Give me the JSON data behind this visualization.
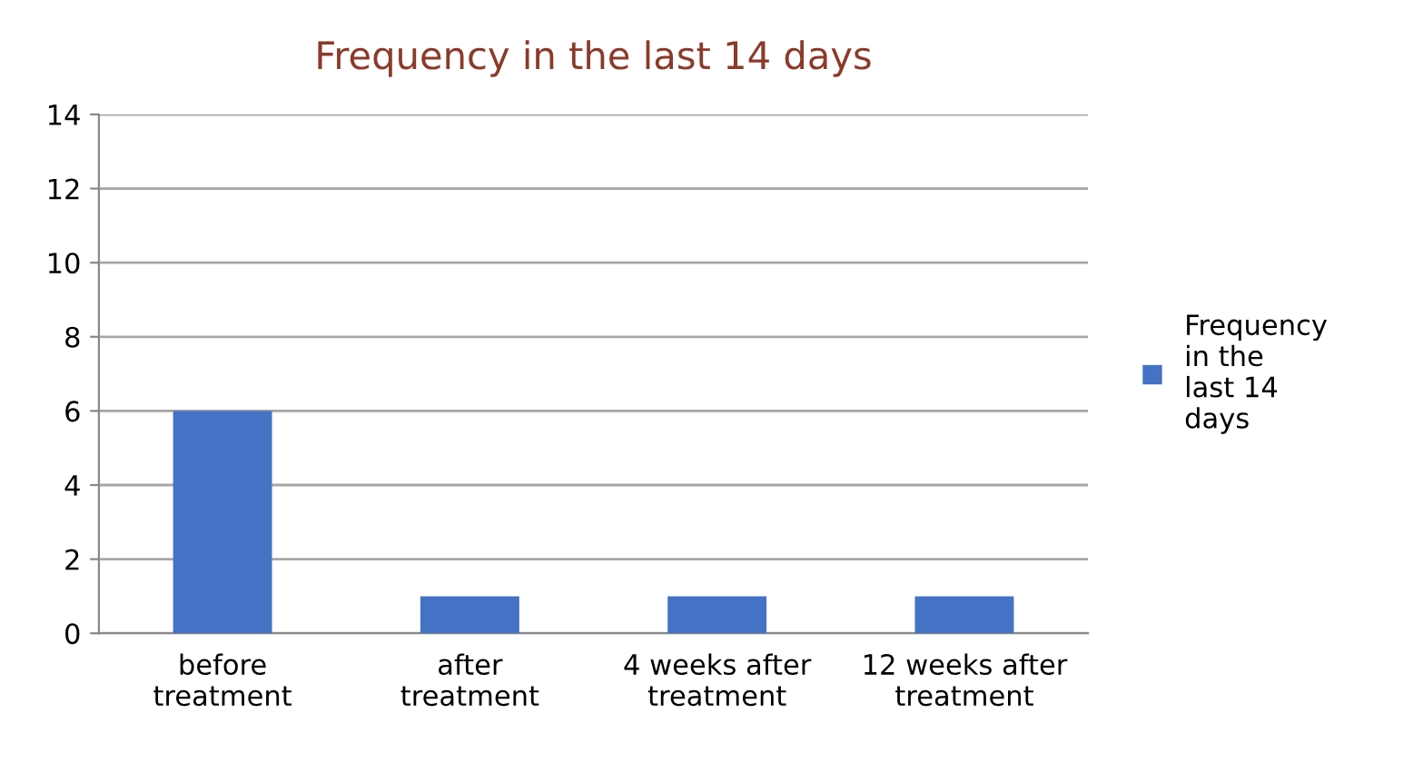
{
  "chart_data": {
    "type": "bar",
    "title": "Frequency in the last 14 days",
    "categories": [
      "before treatment",
      "after treatment",
      "4 weeks after treatment",
      "12 weeks after treatment"
    ],
    "series": [
      {
        "name": "Frequency in the last 14 days",
        "color": "#4472c4",
        "values": [
          6,
          1,
          1,
          1
        ]
      }
    ],
    "ylim": [
      0,
      14
    ],
    "yticks": [
      0,
      2,
      4,
      6,
      8,
      10,
      12,
      14
    ],
    "grid": "y",
    "legend": "right"
  }
}
